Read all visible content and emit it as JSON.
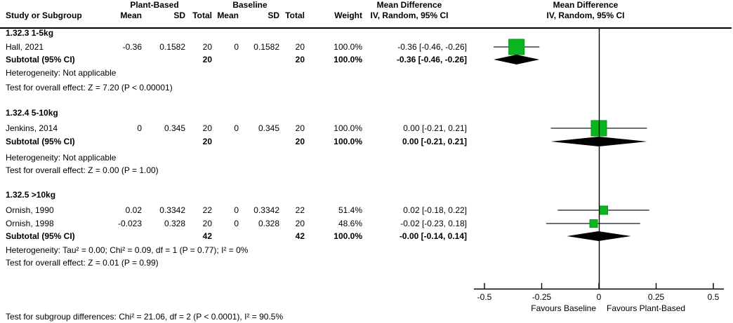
{
  "chart_data": {
    "type": "forest",
    "effect_measure": "Mean Difference",
    "columns": {
      "study": "Study or Subgroup",
      "group1": "Plant-Based",
      "group2": "Baseline",
      "mean": "Mean",
      "sd": "SD",
      "total": "Total",
      "weight": "Weight",
      "effect_title": "Mean Difference",
      "effect_sub": "IV, Random, 95% CI"
    },
    "axis": {
      "min": -0.5,
      "max": 0.5,
      "ticks": [
        -0.5,
        -0.25,
        0,
        0.25,
        0.5
      ],
      "tick_labels": [
        "-0.5",
        "-0.25",
        "0",
        "0.25",
        "0.5"
      ],
      "favours_left": "Favours Baseline",
      "favours_right": "Favours Plant-Based"
    },
    "subgroups": [
      {
        "label": "1.32.3 1-5kg",
        "studies": [
          {
            "name": "Hall, 2021",
            "pb_mean": "-0.36",
            "pb_sd": "0.1582",
            "pb_total": "20",
            "bl_mean": "0",
            "bl_sd": "0.1582",
            "bl_total": "20",
            "weight": "100.0%",
            "ci_text": "-0.36 [-0.46, -0.26]",
            "est": -0.36,
            "lo": -0.46,
            "hi": -0.26,
            "weight_pct": 100.0
          }
        ],
        "subtotal": {
          "label": "Subtotal (95% CI)",
          "pb_total": "20",
          "bl_total": "20",
          "weight": "100.0%",
          "ci_text": "-0.36 [-0.46, -0.26]",
          "est": -0.36,
          "lo": -0.46,
          "hi": -0.26
        },
        "heterogeneity": "Heterogeneity: Not applicable",
        "overall_test": "Test for overall effect: Z = 7.20 (P < 0.00001)"
      },
      {
        "label": "1.32.4 5-10kg",
        "studies": [
          {
            "name": "Jenkins, 2014",
            "pb_mean": "0",
            "pb_sd": "0.345",
            "pb_total": "20",
            "bl_mean": "0",
            "bl_sd": "0.345",
            "bl_total": "20",
            "weight": "100.0%",
            "ci_text": "0.00 [-0.21, 0.21]",
            "est": 0.0,
            "lo": -0.21,
            "hi": 0.21,
            "weight_pct": 100.0
          }
        ],
        "subtotal": {
          "label": "Subtotal (95% CI)",
          "pb_total": "20",
          "bl_total": "20",
          "weight": "100.0%",
          "ci_text": "0.00 [-0.21, 0.21]",
          "est": 0.0,
          "lo": -0.21,
          "hi": 0.21
        },
        "heterogeneity": "Heterogeneity: Not applicable",
        "overall_test": "Test for overall effect: Z = 0.00 (P = 1.00)"
      },
      {
        "label": "1.32.5 >10kg",
        "studies": [
          {
            "name": "Ornish, 1990",
            "pb_mean": "0.02",
            "pb_sd": "0.3342",
            "pb_total": "22",
            "bl_mean": "0",
            "bl_sd": "0.3342",
            "bl_total": "22",
            "weight": "51.4%",
            "ci_text": "0.02 [-0.18, 0.22]",
            "est": 0.02,
            "lo": -0.18,
            "hi": 0.22,
            "weight_pct": 51.4
          },
          {
            "name": "Ornish, 1998",
            "pb_mean": "-0.023",
            "pb_sd": "0.328",
            "pb_total": "20",
            "bl_mean": "0",
            "bl_sd": "0.328",
            "bl_total": "20",
            "weight": "48.6%",
            "ci_text": "-0.02 [-0.23, 0.18]",
            "est": -0.023,
            "lo": -0.23,
            "hi": 0.18,
            "weight_pct": 48.6
          }
        ],
        "subtotal": {
          "label": "Subtotal (95% CI)",
          "pb_total": "42",
          "bl_total": "42",
          "weight": "100.0%",
          "ci_text": "-0.00 [-0.14, 0.14]",
          "est": -0.002,
          "lo": -0.14,
          "hi": 0.14
        },
        "heterogeneity": "Heterogeneity: Tau² = 0.00; Chi² = 0.09, df = 1 (P = 0.77); I² = 0%",
        "overall_test": "Test for overall effect: Z = 0.01 (P = 0.99)"
      }
    ],
    "footer": "Test for subgroup differences: Chi² = 21.06, df = 2 (P < 0.0001), I² = 90.5%",
    "colors": {
      "square": "#0bb51f",
      "square_border": "#049416",
      "diamond": "#000000",
      "ci_line": "#404040",
      "axis_line": "#000000"
    }
  }
}
